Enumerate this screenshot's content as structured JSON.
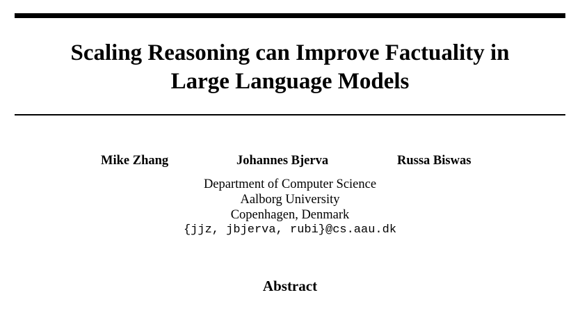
{
  "paper": {
    "title_lines": [
      "Scaling Reasoning can Improve Factuality in",
      "Large Language Models"
    ],
    "authors": [
      "Mike Zhang",
      "Johannes Bjerva",
      "Russa Biswas"
    ],
    "affiliation": {
      "department": "Department of Computer Science",
      "university": "Aalborg University",
      "location": "Copenhagen, Denmark",
      "email": "{jjz, jbjerva, rubi}@cs.aau.dk"
    },
    "abstract_heading": "Abstract"
  }
}
